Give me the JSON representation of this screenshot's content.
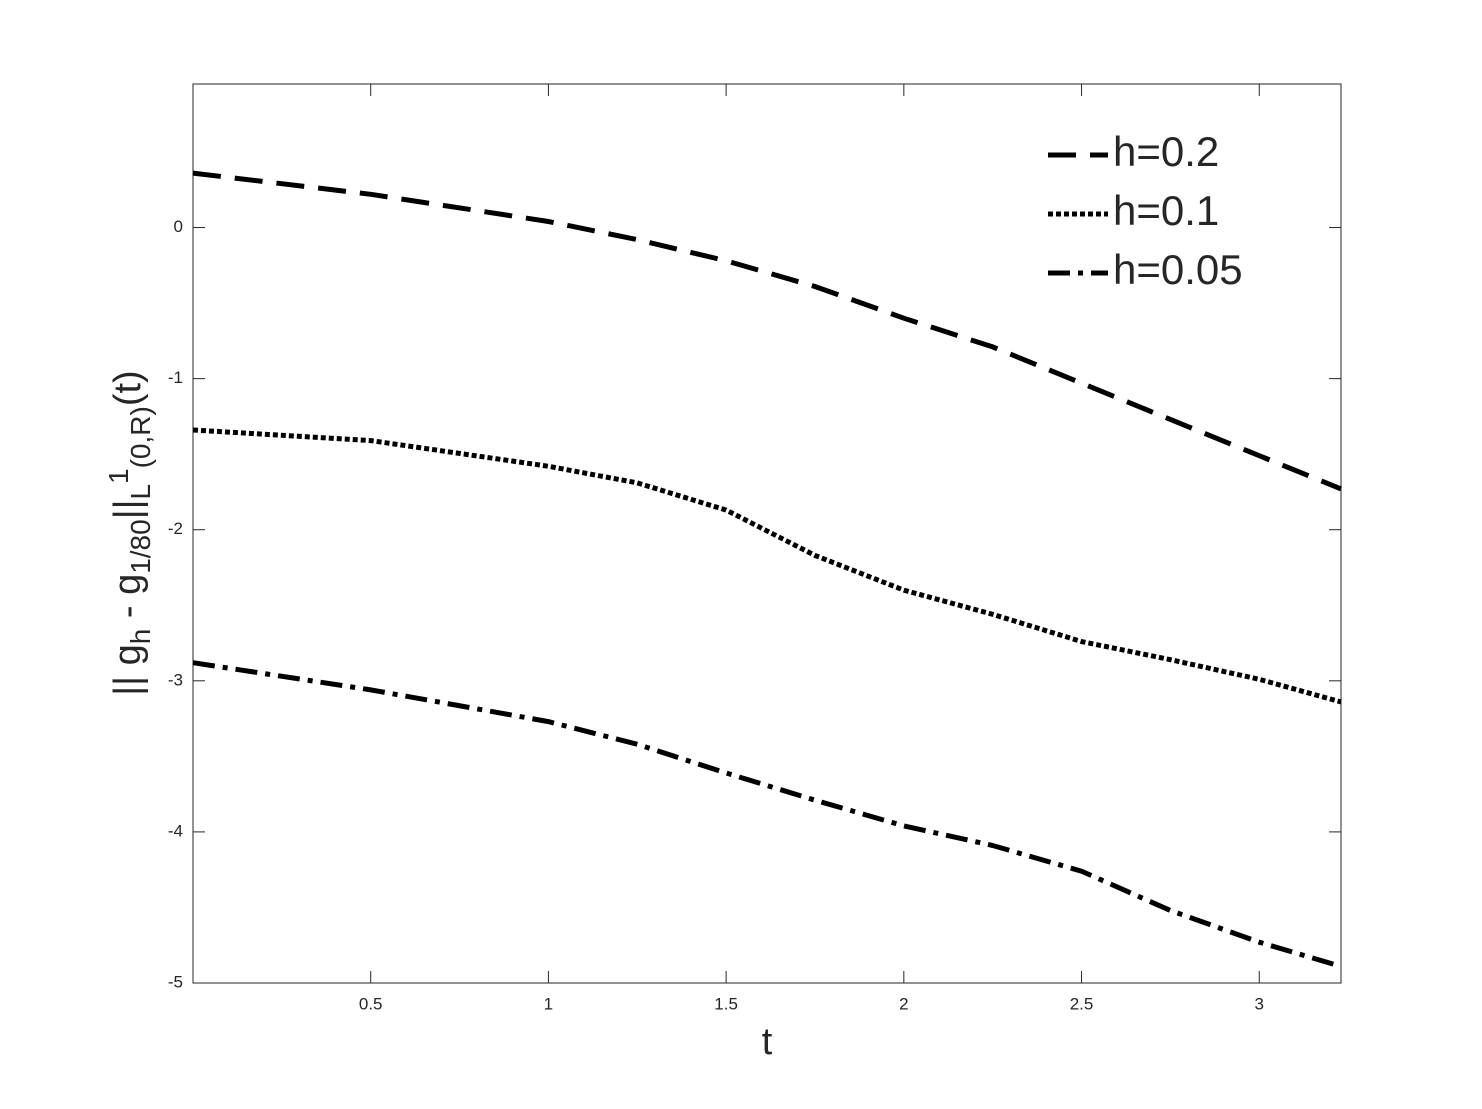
{
  "chart_data": {
    "type": "line",
    "xlabel": "t",
    "ylabel_parts": [
      "|| g",
      "h",
      " - g",
      "1/80",
      "||",
      "L",
      "1",
      "(0,R)",
      "(t)"
    ],
    "x": [
      0,
      0.5,
      1,
      1.25,
      1.5,
      1.75,
      2,
      2.25,
      2.5,
      2.75,
      3,
      3.23
    ],
    "series": [
      {
        "name": "h=0.2",
        "color": "#000000",
        "dash": "dashed",
        "values": [
          0.36,
          0.22,
          0.04,
          -0.08,
          -0.22,
          -0.39,
          -0.6,
          -0.79,
          -1.03,
          -1.27,
          -1.51,
          -1.73
        ]
      },
      {
        "name": "h=0.1",
        "color": "#000000",
        "dash": "dotted",
        "values": [
          -1.34,
          -1.41,
          -1.58,
          -1.69,
          -1.87,
          -2.17,
          -2.4,
          -2.56,
          -2.74,
          -2.86,
          -2.99,
          -3.14
        ]
      },
      {
        "name": "h=0.05",
        "color": "#000000",
        "dash": "dashdot",
        "values": [
          -2.88,
          -3.06,
          -3.27,
          -3.42,
          -3.61,
          -3.79,
          -3.96,
          -4.09,
          -4.26,
          -4.52,
          -4.73,
          -4.89
        ]
      }
    ],
    "xlim": [
      0,
      3.23
    ],
    "ylim": [
      -5,
      0.95
    ],
    "xticks": [
      0.5,
      1,
      1.5,
      2,
      2.5,
      3
    ],
    "yticks": [
      -5,
      -4,
      -3,
      -2,
      -1,
      0
    ],
    "grid": false,
    "legend": "northeast"
  }
}
